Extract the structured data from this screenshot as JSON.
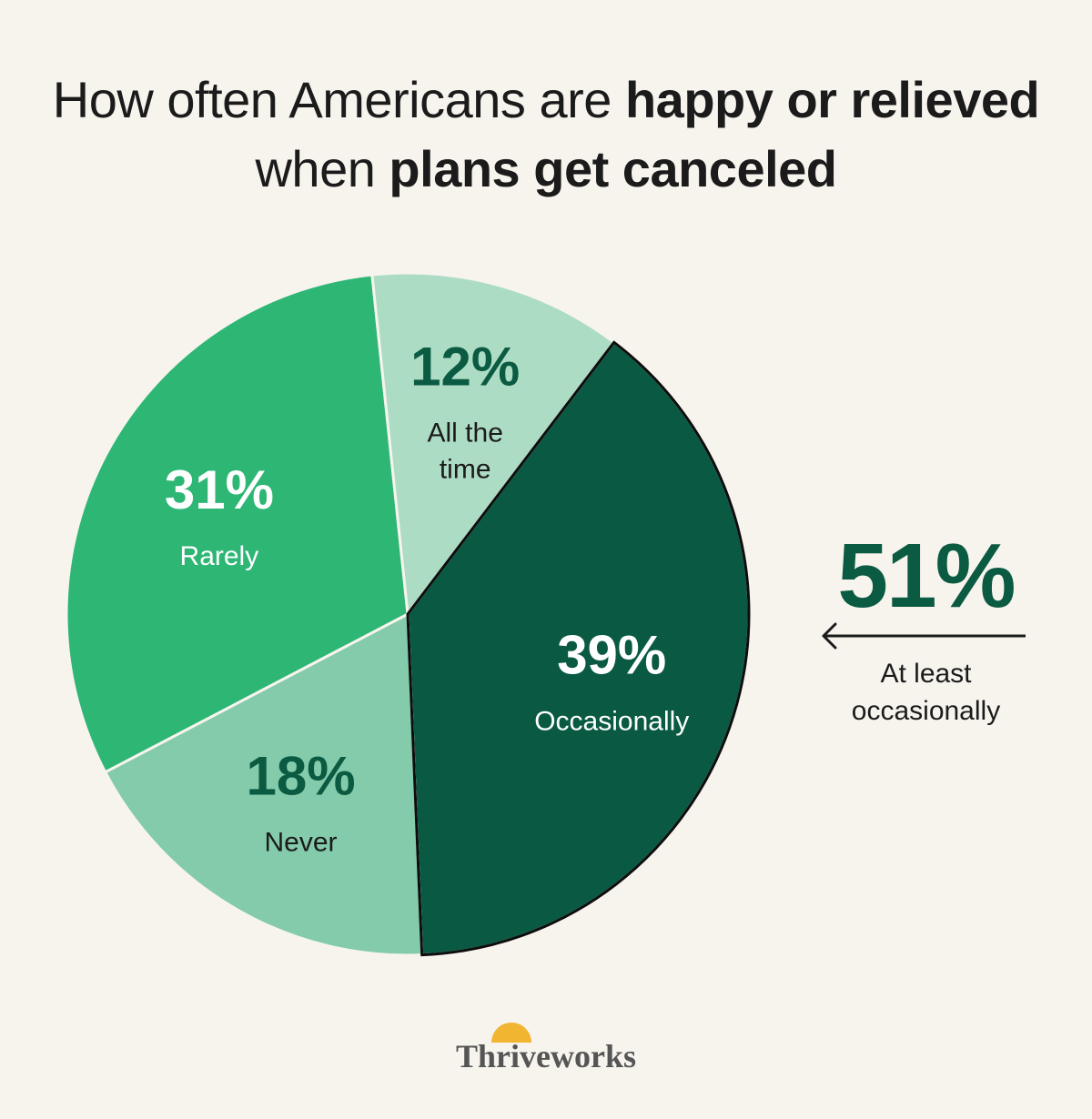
{
  "title": {
    "part1": "How often Americans are ",
    "part2": "happy or relieved",
    "part3": " when ",
    "part4": "plans get canceled"
  },
  "chart_data": {
    "type": "pie",
    "start_angle_deg": -6,
    "direction": "clockwise",
    "slices": [
      {
        "label": "All the time",
        "value": 12,
        "value_label": "12%",
        "color": "#addcc4",
        "text_color": "#0b5a42"
      },
      {
        "label": "Occasionally",
        "value": 39,
        "value_label": "39%",
        "color": "#0a5a43",
        "text_color": "#ffffff"
      },
      {
        "label": "Never",
        "value": 18,
        "value_label": "18%",
        "color": "#83cbaa",
        "text_color": "#0b5a42"
      },
      {
        "label": "Rarely",
        "value": 31,
        "value_label": "31%",
        "color": "#2eb674",
        "text_color": "#ffffff"
      }
    ]
  },
  "callout": {
    "value": "51%",
    "label": "At least occasionally"
  },
  "brand": {
    "name": "Thriveworks",
    "sun_color": "#f2b531"
  }
}
